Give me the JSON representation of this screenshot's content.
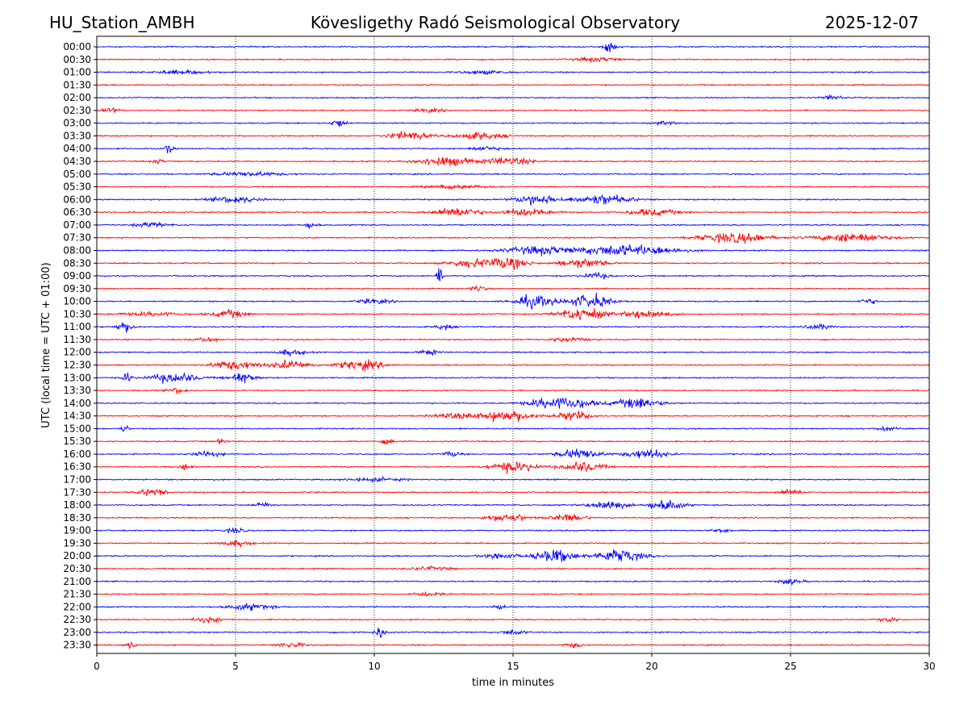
{
  "header": {
    "station": "HU_Station_AMBH",
    "observatory": "Kövesligethy Radó Seismological Observatory",
    "date": "2025-12-07"
  },
  "chart_data": {
    "type": "line",
    "title": "Kövesligethy Radó Seismological Observatory",
    "xlabel": "time in minutes",
    "ylabel": "UTC (local time = UTC + 01:00)",
    "xlim": [
      0,
      30
    ],
    "x_ticks": [
      0,
      5,
      10,
      15,
      20,
      25,
      30
    ],
    "grid": "vertical dotted at x ticks",
    "series_colors": [
      "#0000ff",
      "#ff0000"
    ],
    "noise_level": 0.22,
    "traces": [
      {
        "label": "00:00",
        "events": [
          [
            18.5,
            0.25,
            1.6
          ]
        ]
      },
      {
        "label": "00:30",
        "events": [
          [
            18.0,
            0.8,
            0.7
          ]
        ]
      },
      {
        "label": "01:00",
        "events": [
          [
            3.0,
            1.0,
            0.6
          ],
          [
            14.0,
            0.8,
            0.6
          ]
        ]
      },
      {
        "label": "01:30",
        "events": []
      },
      {
        "label": "02:00",
        "events": [
          [
            26.5,
            0.3,
            1.1
          ]
        ]
      },
      {
        "label": "02:30",
        "events": [
          [
            0.5,
            0.3,
            0.8
          ],
          [
            12.0,
            0.5,
            0.6
          ]
        ]
      },
      {
        "label": "03:00",
        "events": [
          [
            8.7,
            0.25,
            1.5
          ],
          [
            20.5,
            0.3,
            0.7
          ]
        ]
      },
      {
        "label": "03:30",
        "events": [
          [
            11.2,
            0.7,
            1.5
          ],
          [
            13.8,
            0.8,
            1.2
          ]
        ]
      },
      {
        "label": "04:00",
        "events": [
          [
            2.6,
            0.12,
            2.2
          ],
          [
            14.0,
            0.5,
            0.7
          ]
        ]
      },
      {
        "label": "04:30",
        "events": [
          [
            12.5,
            0.9,
            1.7
          ],
          [
            14.8,
            0.8,
            1.4
          ],
          [
            2.2,
            0.2,
            0.8
          ]
        ]
      },
      {
        "label": "05:00",
        "events": [
          [
            5.5,
            1.2,
            0.7
          ]
        ]
      },
      {
        "label": "05:30",
        "events": [
          [
            13.0,
            1.0,
            0.6
          ]
        ]
      },
      {
        "label": "06:00",
        "events": [
          [
            5.0,
            0.8,
            1.2
          ],
          [
            15.8,
            0.7,
            1.8
          ],
          [
            18.2,
            1.0,
            1.7
          ]
        ]
      },
      {
        "label": "06:30",
        "events": [
          [
            13.0,
            0.8,
            1.6
          ],
          [
            15.5,
            0.8,
            1.3
          ],
          [
            20.0,
            0.9,
            1.2
          ]
        ]
      },
      {
        "label": "07:00",
        "events": [
          [
            2.0,
            0.6,
            0.8
          ],
          [
            7.7,
            0.3,
            0.9
          ]
        ]
      },
      {
        "label": "07:30",
        "events": [
          [
            23.0,
            1.2,
            1.8
          ],
          [
            27.2,
            1.2,
            1.6
          ]
        ]
      },
      {
        "label": "08:00",
        "events": [
          [
            16.0,
            1.2,
            1.5
          ],
          [
            18.5,
            1.0,
            1.6
          ],
          [
            20.0,
            1.2,
            1.3
          ]
        ]
      },
      {
        "label": "08:30",
        "events": [
          [
            13.5,
            0.8,
            1.4
          ],
          [
            14.8,
            0.7,
            1.9
          ],
          [
            17.5,
            0.8,
            1.6
          ]
        ]
      },
      {
        "label": "09:00",
        "events": [
          [
            12.35,
            0.1,
            4.8
          ],
          [
            18.0,
            0.5,
            1.0
          ]
        ]
      },
      {
        "label": "09:30",
        "events": [
          [
            13.7,
            0.3,
            1.0
          ]
        ]
      },
      {
        "label": "10:00",
        "events": [
          [
            15.8,
            0.7,
            2.2
          ],
          [
            17.8,
            0.7,
            2.5
          ],
          [
            10.0,
            0.6,
            0.8
          ],
          [
            27.8,
            0.3,
            1.0
          ]
        ]
      },
      {
        "label": "10:30",
        "events": [
          [
            4.8,
            0.6,
            1.4
          ],
          [
            17.5,
            0.8,
            2.3
          ],
          [
            19.8,
            0.7,
            1.7
          ],
          [
            2.0,
            1.0,
            0.7
          ]
        ]
      },
      {
        "label": "11:00",
        "events": [
          [
            1.0,
            0.3,
            1.8
          ],
          [
            12.5,
            0.3,
            1.0
          ],
          [
            26.0,
            0.4,
            1.0
          ]
        ]
      },
      {
        "label": "11:30",
        "events": [
          [
            4.0,
            0.5,
            0.7
          ],
          [
            17.0,
            0.6,
            0.8
          ]
        ]
      },
      {
        "label": "12:00",
        "events": [
          [
            7.0,
            0.5,
            1.0
          ],
          [
            12.0,
            0.3,
            1.0
          ]
        ]
      },
      {
        "label": "12:30",
        "events": [
          [
            5.0,
            0.8,
            1.6
          ],
          [
            7.0,
            0.7,
            1.5
          ],
          [
            9.5,
            0.8,
            1.7
          ]
        ]
      },
      {
        "label": "13:00",
        "events": [
          [
            1.1,
            0.15,
            2.0
          ],
          [
            2.8,
            0.8,
            1.8
          ],
          [
            5.2,
            0.5,
            1.7
          ]
        ]
      },
      {
        "label": "13:30",
        "events": [
          [
            2.9,
            0.3,
            1.0
          ]
        ]
      },
      {
        "label": "14:00",
        "events": [
          [
            17.0,
            0.9,
            2.0
          ],
          [
            19.5,
            0.8,
            1.9
          ],
          [
            16.0,
            0.6,
            1.0
          ]
        ]
      },
      {
        "label": "14:30",
        "events": [
          [
            14.8,
            0.9,
            2.0
          ],
          [
            17.2,
            0.6,
            1.6
          ],
          [
            13.0,
            0.8,
            0.9
          ]
        ]
      },
      {
        "label": "15:00",
        "events": [
          [
            1.0,
            0.15,
            1.2
          ],
          [
            28.5,
            0.4,
            0.7
          ]
        ]
      },
      {
        "label": "15:30",
        "events": [
          [
            10.5,
            0.2,
            1.1
          ],
          [
            4.5,
            0.2,
            0.9
          ]
        ]
      },
      {
        "label": "16:00",
        "events": [
          [
            17.4,
            0.7,
            1.9
          ],
          [
            19.8,
            0.7,
            1.7
          ],
          [
            4.0,
            0.5,
            0.9
          ],
          [
            12.8,
            0.3,
            0.9
          ]
        ]
      },
      {
        "label": "16:30",
        "events": [
          [
            15.0,
            0.8,
            1.8
          ],
          [
            17.5,
            0.7,
            1.8
          ],
          [
            3.2,
            0.2,
            1.1
          ]
        ]
      },
      {
        "label": "17:00",
        "events": [
          [
            10.0,
            1.0,
            0.6
          ]
        ]
      },
      {
        "label": "17:30",
        "events": [
          [
            2.0,
            0.5,
            1.2
          ],
          [
            25.0,
            0.4,
            1.0
          ]
        ]
      },
      {
        "label": "18:00",
        "events": [
          [
            18.4,
            0.6,
            1.8
          ],
          [
            20.5,
            0.6,
            2.0
          ],
          [
            6.0,
            0.3,
            0.9
          ]
        ]
      },
      {
        "label": "18:30",
        "events": [
          [
            14.8,
            0.7,
            1.4
          ],
          [
            17.0,
            0.6,
            1.3
          ]
        ]
      },
      {
        "label": "19:00",
        "events": [
          [
            5.0,
            0.3,
            1.0
          ],
          [
            22.5,
            0.3,
            0.8
          ]
        ]
      },
      {
        "label": "19:30",
        "events": [
          [
            5.0,
            0.5,
            1.0
          ]
        ]
      },
      {
        "label": "20:00",
        "events": [
          [
            16.5,
            0.7,
            2.2
          ],
          [
            18.8,
            0.8,
            2.4
          ],
          [
            14.5,
            0.6,
            1.1
          ]
        ]
      },
      {
        "label": "20:30",
        "events": [
          [
            12.0,
            0.8,
            0.6
          ]
        ]
      },
      {
        "label": "21:00",
        "events": [
          [
            25.0,
            0.4,
            0.9
          ]
        ]
      },
      {
        "label": "21:30",
        "events": [
          [
            12.0,
            0.5,
            0.7
          ]
        ]
      },
      {
        "label": "22:00",
        "events": [
          [
            5.5,
            0.8,
            1.1
          ],
          [
            14.5,
            0.2,
            1.0
          ]
        ]
      },
      {
        "label": "22:30",
        "events": [
          [
            4.0,
            0.5,
            0.9
          ],
          [
            28.5,
            0.3,
            0.9
          ]
        ]
      },
      {
        "label": "23:00",
        "events": [
          [
            10.2,
            0.2,
            2.0
          ],
          [
            15.0,
            0.4,
            0.9
          ]
        ]
      },
      {
        "label": "23:30",
        "events": [
          [
            1.2,
            0.15,
            1.4
          ],
          [
            7.0,
            0.5,
            0.9
          ],
          [
            17.2,
            0.3,
            0.8
          ]
        ]
      }
    ]
  }
}
